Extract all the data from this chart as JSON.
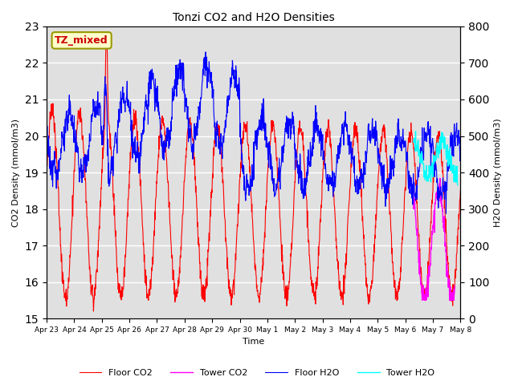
{
  "title": "Tonzi CO2 and H2O Densities",
  "xlabel": "Time",
  "ylabel_left": "CO2 Density (mmol/m3)",
  "ylabel_right": "H2O Density (mmol/m3)",
  "ylim_left": [
    15.0,
    23.0
  ],
  "ylim_right": [
    0,
    800
  ],
  "annotation_text": "TZ_mixed",
  "annotation_color": "#cc0000",
  "annotation_bg": "#ffffcc",
  "annotation_border": "#999900",
  "bg_color": "#e0e0e0",
  "line_floor_co2_color": "red",
  "line_tower_co2_color": "magenta",
  "line_floor_h2o_color": "blue",
  "line_tower_h2o_color": "cyan",
  "xtick_labels": [
    "Apr 23",
    "Apr 24",
    "Apr 25",
    "Apr 26",
    "Apr 27",
    "Apr 28",
    "Apr 29",
    "Apr 30",
    "May 1",
    "May 2",
    "May 3",
    "May 4",
    "May 5",
    "May 6",
    "May 7",
    "May 8"
  ],
  "legend_labels": [
    "Floor CO2",
    "Tower CO2",
    "Floor H2O",
    "Tower H2O"
  ],
  "figsize": [
    6.4,
    4.8
  ],
  "dpi": 100
}
